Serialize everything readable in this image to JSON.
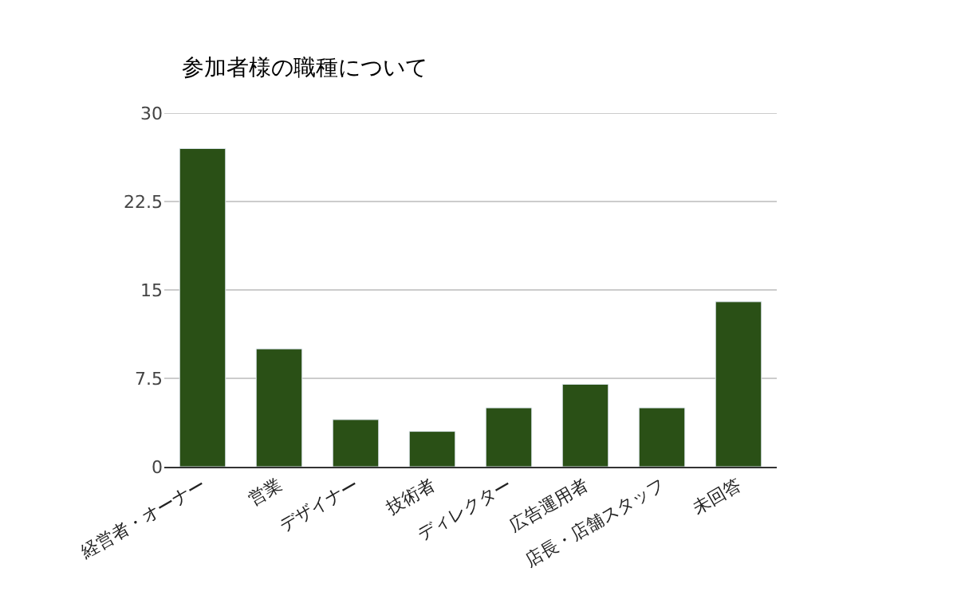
{
  "chart_data": {
    "type": "bar",
    "title": "参加者様の職種について",
    "categories": [
      "経営者・オーナー",
      "営業",
      "デザイナー",
      "技術者",
      "ディレクター",
      "広告運用者",
      "店長・店舗スタッフ",
      "未回答"
    ],
    "series": [
      {
        "color": "#2a5016",
        "values": [
          27,
          10,
          4,
          3,
          5,
          7,
          5,
          14
        ]
      }
    ],
    "ylim": [
      0,
      30
    ],
    "yticks": [
      0,
      7.5,
      15,
      22.5,
      30
    ],
    "grid": "y"
  }
}
